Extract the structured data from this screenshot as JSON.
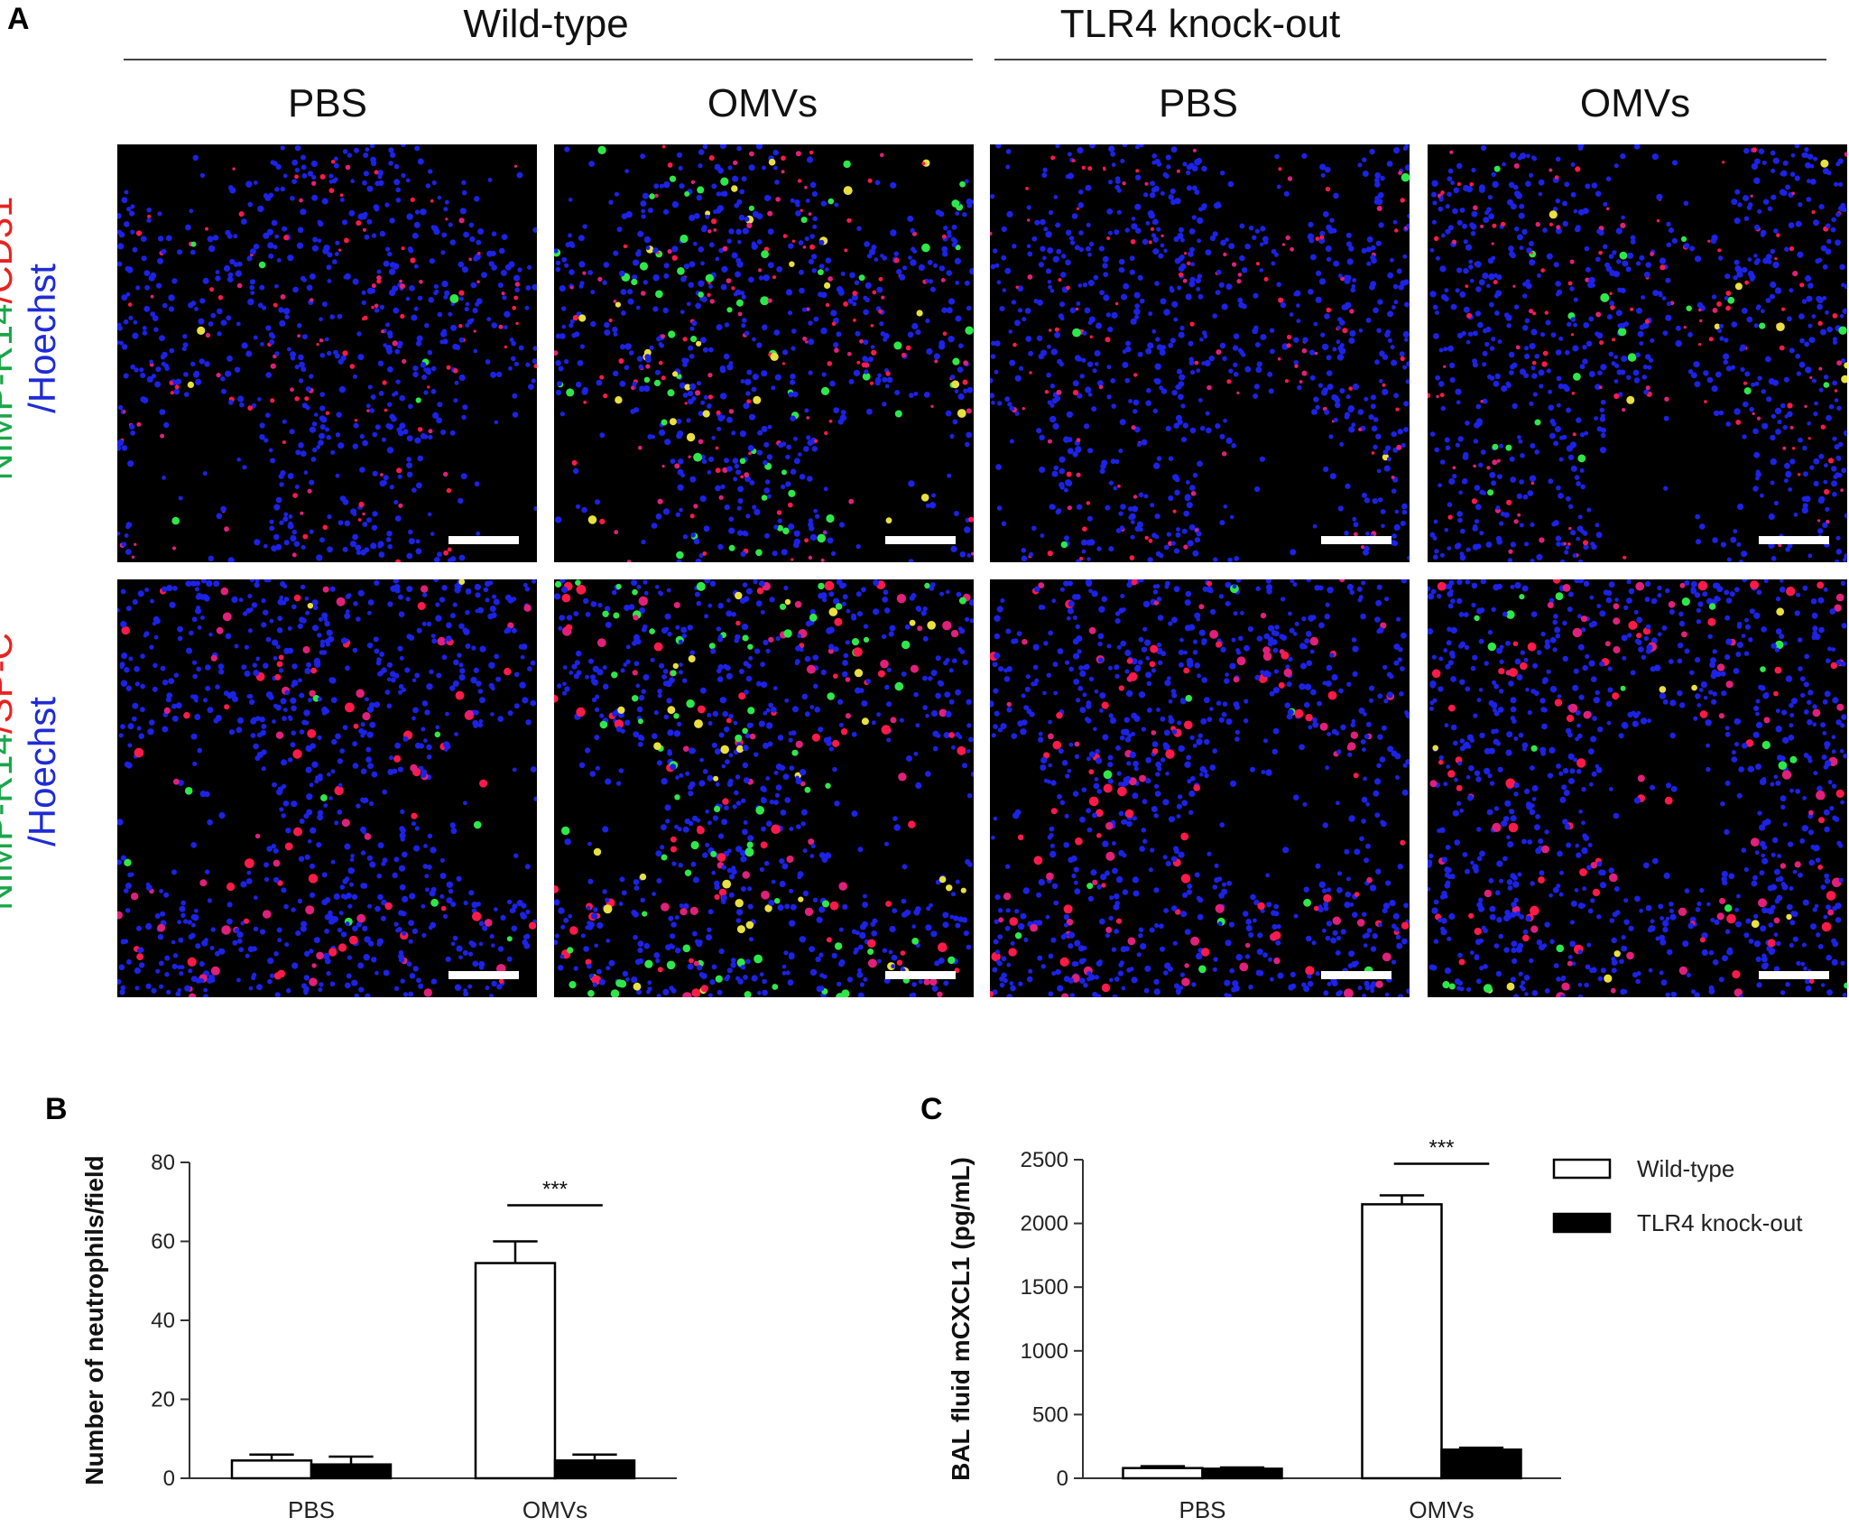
{
  "figure": {
    "panel_a": {
      "letter": "A",
      "groups": [
        {
          "title": "Wild-type",
          "conditions": [
            "PBS",
            "OMVs"
          ]
        },
        {
          "title": "TLR4 knock-out",
          "conditions": [
            "PBS",
            "OMVs"
          ]
        }
      ],
      "rows": [
        {
          "stain_green": "NIMP-R14",
          "slash1": "/",
          "stain_red": "CD31",
          "stain_blue": "/Hoechst"
        },
        {
          "stain_green": "NIMP-R14",
          "slash1": "/",
          "stain_red": "SP-C",
          "stain_blue": "/Hoechst"
        }
      ],
      "colors": {
        "green": "#1aa64a",
        "red": "#e8231f",
        "blue": "#1f2bd6"
      }
    },
    "panel_b": {
      "letter": "B"
    },
    "panel_c": {
      "letter": "C"
    }
  },
  "chart_data": [
    {
      "type": "bar",
      "panel": "B",
      "categories": [
        "PBS",
        "OMVs"
      ],
      "ylabel": "Number of neutrophils/field",
      "ylim": [
        0,
        80
      ],
      "yticks": [
        "0",
        "20",
        "40",
        "60",
        "80"
      ],
      "series": [
        {
          "name": "Wild-type",
          "values": [
            4.5,
            54.5
          ],
          "errors": [
            1.5,
            5.5
          ],
          "fill": "#ffffff"
        },
        {
          "name": "TLR4 knock-out",
          "values": [
            3.5,
            4.5
          ],
          "errors": [
            2.0,
            1.5
          ],
          "fill": "#000000"
        }
      ],
      "significance": [
        {
          "category": "OMVs",
          "label": "***"
        }
      ],
      "legend": "none"
    },
    {
      "type": "bar",
      "panel": "C",
      "categories": [
        "PBS",
        "OMVs"
      ],
      "ylabel": "BAL fluid mCXCL1 (pg/mL)",
      "ylim": [
        0,
        2500
      ],
      "yticks": [
        "0",
        "500",
        "1000",
        "1500",
        "2000",
        "2500"
      ],
      "series": [
        {
          "name": "Wild-type",
          "values": [
            80,
            2150
          ],
          "errors": [
            15,
            70
          ],
          "fill": "#ffffff"
        },
        {
          "name": "TLR4 knock-out",
          "values": [
            75,
            225
          ],
          "errors": [
            10,
            15
          ],
          "fill": "#000000"
        }
      ],
      "significance": [
        {
          "category": "OMVs",
          "label": "***"
        }
      ],
      "legend": "right"
    }
  ]
}
